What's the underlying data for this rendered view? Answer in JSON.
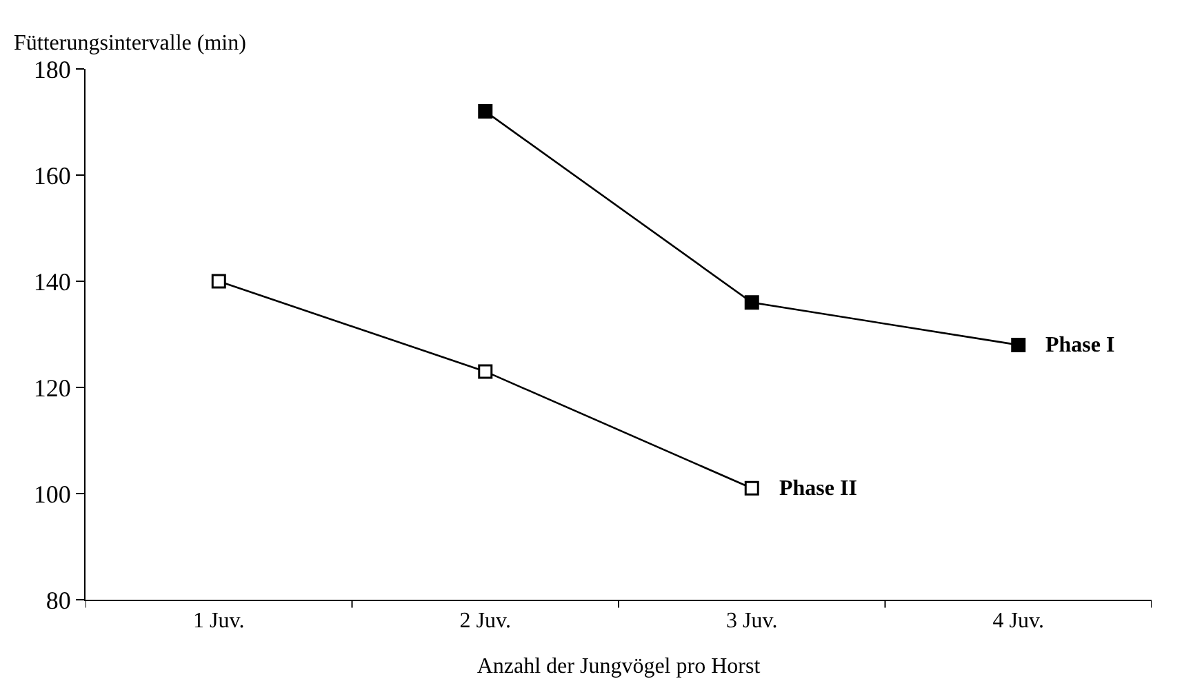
{
  "chart_data": {
    "type": "line",
    "xlabel": "Anzahl der Jungvögel pro Horst",
    "ylabel": "Fütterungsintervalle (min)",
    "categories": [
      "1 Juv.",
      "2 Juv.",
      "3 Juv.",
      "4 Juv."
    ],
    "series": [
      {
        "name": "Phase I",
        "color": "#000000",
        "marker": "square",
        "values": [
          null,
          172,
          136,
          128
        ]
      },
      {
        "name": "Phase II",
        "color": "#000000",
        "marker": "square-open",
        "values": [
          140,
          123,
          101,
          null
        ]
      }
    ],
    "ylim": [
      80,
      180
    ],
    "yticks": [
      80,
      100,
      120,
      140,
      160,
      180
    ],
    "legend": false,
    "line_style": "solid"
  }
}
